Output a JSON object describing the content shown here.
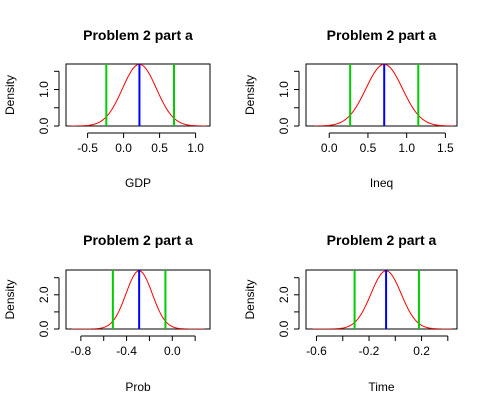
{
  "chart_data": [
    {
      "type": "line",
      "title": "Problem 2 part a",
      "xlabel": "GDP",
      "ylabel": "Density",
      "xlim": [
        -0.8,
        1.2
      ],
      "ylim": [
        0,
        1.7
      ],
      "xticks": [
        -0.5,
        0.0,
        0.5,
        1.0
      ],
      "xtick_labels": [
        "-0.5",
        "0.0",
        "0.5",
        "1.0"
      ],
      "yticks": [
        0.0,
        0.5,
        1.0,
        1.5
      ],
      "ytick_labels": [
        "0.0",
        "",
        "1.0",
        ""
      ],
      "density": {
        "color": "#ff0000",
        "x_range": [
          -0.75,
          1.15
        ],
        "mean": 0.22,
        "sd": 0.236,
        "peak": 1.69
      },
      "vlines": [
        {
          "x": -0.24,
          "color": "#00cc00"
        },
        {
          "x": 0.22,
          "color": "#0000ff"
        },
        {
          "x": 0.7,
          "color": "#00cc00"
        }
      ]
    },
    {
      "type": "line",
      "title": "Problem 2 part a",
      "xlabel": "Ineq",
      "ylabel": "Density",
      "xlim": [
        -0.3,
        1.65
      ],
      "ylim": [
        0,
        1.7
      ],
      "xticks": [
        0.0,
        0.5,
        1.0,
        1.5
      ],
      "xtick_labels": [
        "0.0",
        "0.5",
        "1.0",
        "1.5"
      ],
      "yticks": [
        0.0,
        0.5,
        1.0,
        1.5
      ],
      "ytick_labels": [
        "0.0",
        "",
        "1.0",
        ""
      ],
      "density": {
        "color": "#ff0000",
        "x_range": [
          -0.18,
          1.6
        ],
        "mean": 0.71,
        "sd": 0.236,
        "peak": 1.69
      },
      "vlines": [
        {
          "x": 0.27,
          "color": "#00cc00"
        },
        {
          "x": 0.71,
          "color": "#0000ff"
        },
        {
          "x": 1.15,
          "color": "#00cc00"
        }
      ]
    },
    {
      "type": "line",
      "title": "Problem 2 part a",
      "xlabel": "Prob",
      "ylabel": "Density",
      "xlim": [
        -0.93,
        0.33
      ],
      "ylim": [
        0,
        3.45
      ],
      "xticks": [
        -0.8,
        -0.6,
        -0.4,
        -0.2,
        0.0,
        0.2
      ],
      "xtick_labels": [
        "-0.8",
        "",
        "-0.4",
        "",
        "0.0",
        ""
      ],
      "yticks": [
        0.0,
        1.0,
        2.0,
        3.0
      ],
      "ytick_labels": [
        "0.0",
        "",
        "2.0",
        ""
      ],
      "density": {
        "color": "#ff0000",
        "x_range": [
          -0.88,
          0.28
        ],
        "mean": -0.29,
        "sd": 0.115,
        "peak": 3.4
      },
      "vlines": [
        {
          "x": -0.52,
          "color": "#00cc00"
        },
        {
          "x": -0.29,
          "color": "#0000ff"
        },
        {
          "x": -0.06,
          "color": "#00cc00"
        }
      ]
    },
    {
      "type": "line",
      "title": "Problem 2 part a",
      "xlabel": "Time",
      "ylabel": "Density",
      "xlim": [
        -0.68,
        0.47
      ],
      "ylim": [
        0,
        3.45
      ],
      "xticks": [
        -0.6,
        -0.4,
        -0.2,
        0.0,
        0.2,
        0.4
      ],
      "xtick_labels": [
        "-0.6",
        "",
        "-0.2",
        "",
        "0.2",
        ""
      ],
      "yticks": [
        0.0,
        1.0,
        2.0,
        3.0
      ],
      "ytick_labels": [
        "0.0",
        "",
        "2.0",
        ""
      ],
      "density": {
        "color": "#ff0000",
        "x_range": [
          -0.63,
          0.43
        ],
        "mean": -0.07,
        "sd": 0.115,
        "peak": 3.4
      },
      "vlines": [
        {
          "x": -0.31,
          "color": "#00cc00"
        },
        {
          "x": -0.07,
          "color": "#0000ff"
        },
        {
          "x": 0.18,
          "color": "#00cc00"
        }
      ]
    }
  ]
}
